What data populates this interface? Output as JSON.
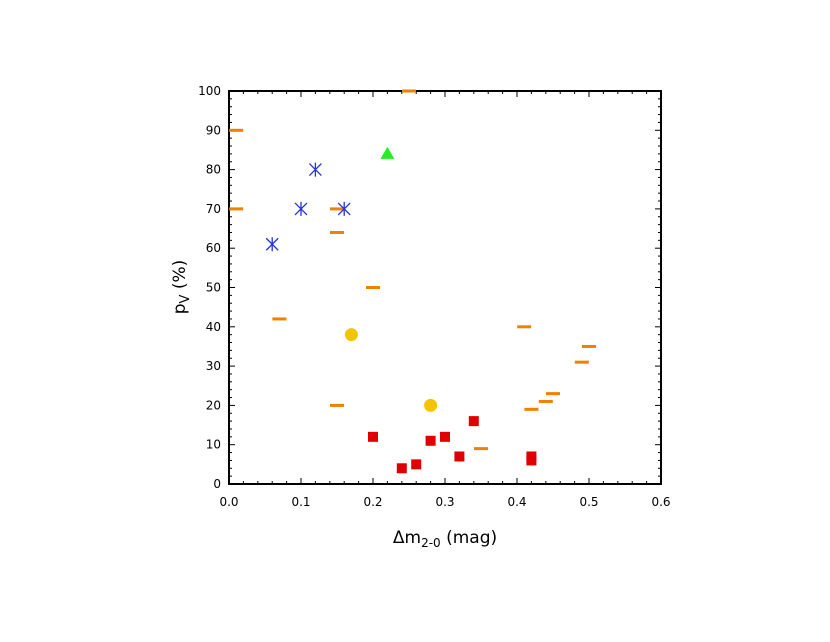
{
  "chart_data": {
    "type": "scatter",
    "title": "",
    "xlabel": {
      "base": "Δm",
      "sub": "2-0",
      "rest": " (mag)"
    },
    "ylabel": {
      "base": "p",
      "sub": "V",
      "rest": " (%)"
    },
    "xlim": [
      0,
      0.6
    ],
    "ylim": [
      0,
      100
    ],
    "x_ticks": [
      {
        "v": 0,
        "label": "0.0"
      },
      {
        "v": 0.1,
        "label": "0.1"
      },
      {
        "v": 0.2,
        "label": "0.2"
      },
      {
        "v": 0.3,
        "label": "0.3"
      },
      {
        "v": 0.4,
        "label": "0.4"
      },
      {
        "v": 0.5,
        "label": "0.5"
      },
      {
        "v": 0.6,
        "label": "0.6"
      }
    ],
    "y_ticks": [
      {
        "v": 0,
        "label": "0"
      },
      {
        "v": 10,
        "label": "10"
      },
      {
        "v": 20,
        "label": "20"
      },
      {
        "v": 30,
        "label": "30"
      },
      {
        "v": 40,
        "label": "40"
      },
      {
        "v": 50,
        "label": "50"
      },
      {
        "v": 60,
        "label": "60"
      },
      {
        "v": 70,
        "label": "70"
      },
      {
        "v": 80,
        "label": "80"
      },
      {
        "v": 90,
        "label": "90"
      },
      {
        "v": 100,
        "label": "100"
      }
    ],
    "grid": false,
    "legend": "none",
    "series": [
      {
        "marker": "dash",
        "color": "#f08000",
        "points": [
          [
            0.01,
            90
          ],
          [
            0.01,
            70
          ],
          [
            0.07,
            42
          ],
          [
            0.15,
            70
          ],
          [
            0.15,
            64
          ],
          [
            0.15,
            20
          ],
          [
            0.2,
            50
          ],
          [
            0.25,
            100
          ],
          [
            0.35,
            9
          ],
          [
            0.41,
            40
          ],
          [
            0.42,
            19
          ],
          [
            0.44,
            21
          ],
          [
            0.45,
            23
          ],
          [
            0.49,
            31
          ],
          [
            0.5,
            35
          ]
        ]
      },
      {
        "marker": "asterisk",
        "color": "#2233dd",
        "points": [
          [
            0.06,
            61
          ],
          [
            0.1,
            70
          ],
          [
            0.12,
            80
          ],
          [
            0.16,
            70
          ]
        ]
      },
      {
        "marker": "triangle",
        "color": "#22ee22",
        "points": [
          [
            0.22,
            84
          ]
        ]
      },
      {
        "marker": "circle",
        "color": "#f5c400",
        "points": [
          [
            0.17,
            38
          ],
          [
            0.28,
            20
          ]
        ]
      },
      {
        "marker": "square",
        "color": "#e00000",
        "points": [
          [
            0.2,
            12
          ],
          [
            0.24,
            4
          ],
          [
            0.26,
            5
          ],
          [
            0.28,
            11
          ],
          [
            0.3,
            12
          ],
          [
            0.32,
            7
          ],
          [
            0.34,
            16
          ],
          [
            0.42,
            7
          ],
          [
            0.42,
            6
          ]
        ]
      }
    ]
  }
}
